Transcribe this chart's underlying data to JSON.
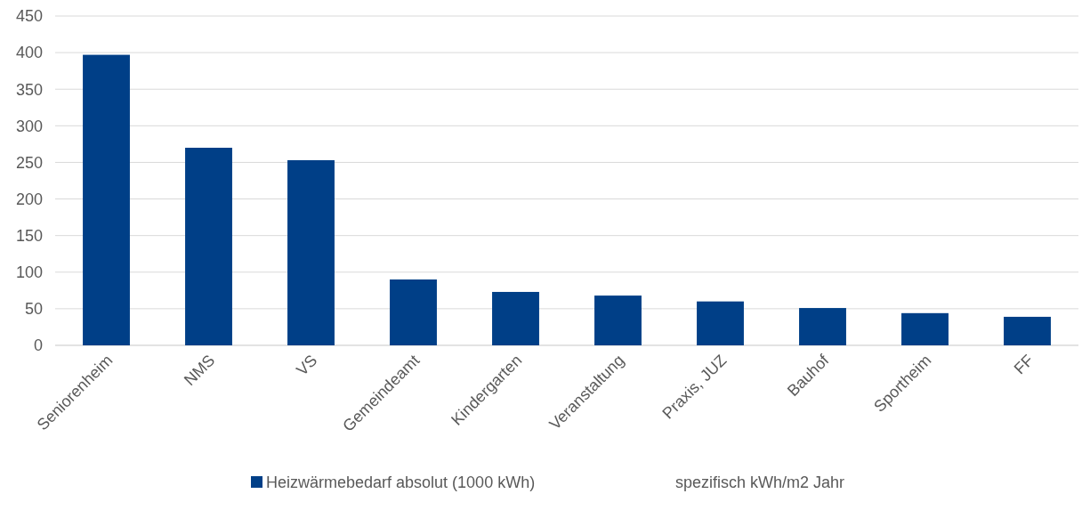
{
  "chart_data": {
    "type": "bar",
    "categories": [
      "Seniorenheim",
      "NMS",
      "VS",
      "Gemeindeamt",
      "Kindergarten",
      "Veranstaltung",
      "Praxis, JUZ",
      "Bauhof",
      "Sportheim",
      "FF"
    ],
    "series": [
      {
        "name": "Heizwärmebedarf absolut (1000 kWh)",
        "color": "#003f87",
        "values": [
          397,
          270,
          253,
          90,
          73,
          68,
          60,
          51,
          44,
          39
        ]
      }
    ],
    "annotations": [
      "spezifisch kWh/m2 Jahr"
    ],
    "ylim": [
      0,
      450
    ],
    "yticks": [
      0,
      50,
      100,
      150,
      200,
      250,
      300,
      350,
      400,
      450
    ],
    "grid": "y",
    "legend": "bottom"
  }
}
